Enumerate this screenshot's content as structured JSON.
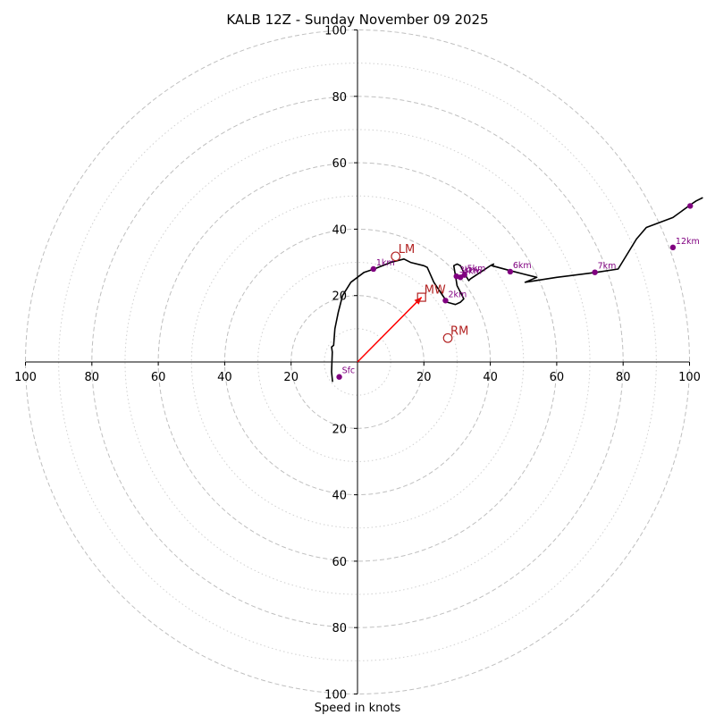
{
  "chart_data": {
    "type": "hodograph",
    "title": "KALB 12Z - Sunday November 09 2025",
    "xlabel": "Speed in knots",
    "units": "knots",
    "xlim": [
      -100,
      100
    ],
    "ylim": [
      -100,
      100
    ],
    "rings_major": [
      20,
      40,
      60,
      80,
      100
    ],
    "rings_minor": [
      10,
      30,
      50,
      70,
      90
    ],
    "tick_values": [
      20,
      40,
      60,
      80,
      100
    ],
    "tick_labels": [
      "20",
      "40",
      "60",
      "80",
      "100"
    ],
    "x_tick_labels": [
      "100",
      "80",
      "60",
      "40",
      "20",
      "20",
      "40",
      "60",
      "80",
      "100"
    ],
    "y_tick_labels": [
      "100",
      "80",
      "60",
      "40",
      "20",
      "20",
      "40",
      "60",
      "80",
      "100"
    ],
    "trace": [
      [
        -7.5,
        -6
      ],
      [
        -7.8,
        -3
      ],
      [
        -7.7,
        0
      ],
      [
        -7.6,
        3
      ],
      [
        -7.8,
        4.5
      ],
      [
        -7.2,
        5
      ],
      [
        -6.8,
        10
      ],
      [
        -5.8,
        15
      ],
      [
        -4.5,
        20
      ],
      [
        -2,
        24
      ],
      [
        2,
        27
      ],
      [
        5,
        28
      ],
      [
        10,
        30
      ],
      [
        14,
        31
      ],
      [
        16,
        30
      ],
      [
        20,
        29
      ],
      [
        21,
        28.5
      ],
      [
        23,
        24
      ],
      [
        25,
        21
      ],
      [
        27,
        18
      ],
      [
        29.5,
        17.3
      ],
      [
        31,
        18
      ],
      [
        32,
        19
      ],
      [
        31,
        21
      ],
      [
        30,
        23
      ],
      [
        29.5,
        26
      ],
      [
        29,
        29
      ],
      [
        30,
        29.5
      ],
      [
        31,
        29
      ],
      [
        32,
        27
      ],
      [
        33.5,
        24.5
      ],
      [
        34,
        25
      ],
      [
        37,
        27
      ],
      [
        40,
        29
      ],
      [
        41,
        29.5
      ],
      [
        40.5,
        29
      ],
      [
        46,
        27.5
      ],
      [
        50,
        26.5
      ],
      [
        54,
        25.5
      ],
      [
        50.5,
        24
      ],
      [
        60,
        25.5
      ],
      [
        72,
        27
      ],
      [
        78.5,
        28
      ],
      [
        84,
        37
      ],
      [
        87,
        40.5
      ],
      [
        95,
        43.5
      ],
      [
        100.5,
        47.5
      ],
      [
        102,
        48.5
      ],
      [
        104,
        49.5
      ]
    ],
    "height_points": [
      {
        "label": "Sfc",
        "u": -5.5,
        "v": -4.5
      },
      {
        "label": "1km",
        "u": 4.8,
        "v": 28
      },
      {
        "label": "2km",
        "u": 26.5,
        "v": 18.5
      },
      {
        "label": "3km",
        "u": 29.8,
        "v": 25.8
      },
      {
        "label": "4km",
        "u": 31,
        "v": 25.5
      },
      {
        "label": "5km",
        "u": 32.2,
        "v": 26.2
      },
      {
        "label": "6km",
        "u": 46,
        "v": 27.2
      },
      {
        "label": "7km",
        "u": 71.5,
        "v": 27
      },
      {
        "label": "12km",
        "u": 95,
        "v": 34.5
      }
    ],
    "height_points_extra": [
      {
        "u": 100.2,
        "v": 47
      }
    ],
    "storm_motion": {
      "lm": {
        "label": "LM",
        "u": 11.5,
        "v": 31.8
      },
      "rm": {
        "label": "RM",
        "u": 27.2,
        "v": 7.2
      },
      "mw": {
        "label": "MW",
        "u": 19.3,
        "v": 19.5
      }
    },
    "colors": {
      "trace": "#000000",
      "height_points": "#800080",
      "storm_motion": "#b22222",
      "mean_wind_vector": "#ff0000",
      "rings": "#bfbfbf"
    }
  }
}
